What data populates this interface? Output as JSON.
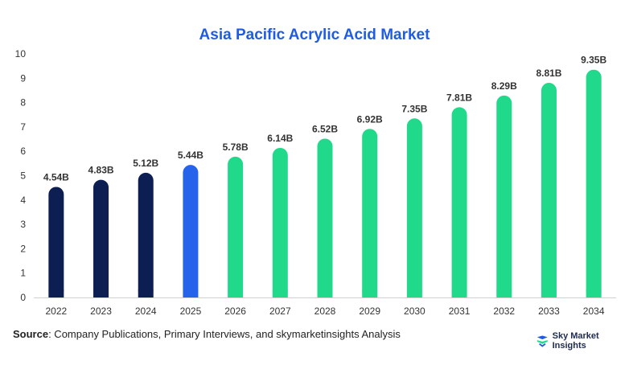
{
  "chart_data": {
    "type": "bar",
    "title": "Asia Pacific Acrylic Acid Market",
    "categories": [
      "2022",
      "2023",
      "2024",
      "2025",
      "2026",
      "2027",
      "2028",
      "2029",
      "2030",
      "2031",
      "2032",
      "2033",
      "2034"
    ],
    "values": [
      4.54,
      4.83,
      5.12,
      5.44,
      5.78,
      6.14,
      6.52,
      6.92,
      7.35,
      7.81,
      8.29,
      8.81,
      9.35
    ],
    "data_labels": [
      "4.54B",
      "4.83B",
      "5.12B",
      "5.44B",
      "5.78B",
      "6.14B",
      "6.52B",
      "6.92B",
      "7.35B",
      "7.81B",
      "8.29B",
      "8.81B",
      "9.35B"
    ],
    "bar_colors": [
      "#0d1f52",
      "#0d1f52",
      "#0d1f52",
      "#2563eb",
      "#20d98a",
      "#20d98a",
      "#20d98a",
      "#20d98a",
      "#20d98a",
      "#20d98a",
      "#20d98a",
      "#20d98a",
      "#20d98a"
    ],
    "ylim": [
      0,
      10
    ],
    "yticks": [
      0,
      1,
      2,
      3,
      4,
      5,
      6,
      7,
      8,
      9,
      10
    ],
    "xlabel": "",
    "ylabel": "",
    "grid": false,
    "legend": "none"
  },
  "source": {
    "label": "Source",
    "text": ": Company Publications, Primary Interviews, and skymarketinsights Analysis"
  },
  "brand": {
    "name": "Sky Market Insights",
    "icon": "sky-market-insights-logo-icon",
    "color": "#1f5ce0"
  }
}
